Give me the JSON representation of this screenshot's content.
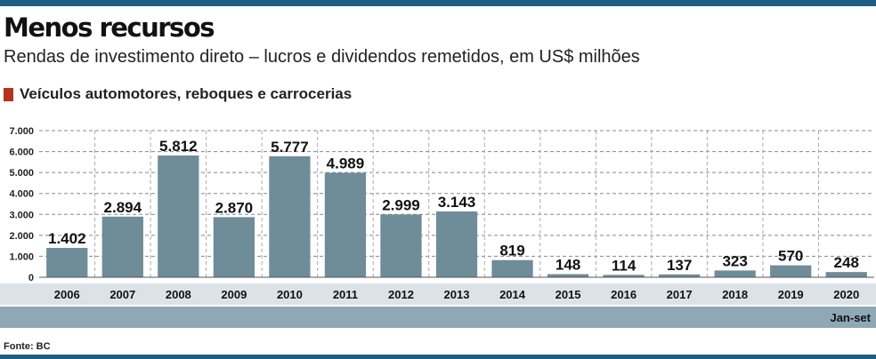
{
  "header": {
    "title": "Menos recursos",
    "subtitle": "Rendas de investimento direto – lucros e dividendos remetidos, em US$ milhões"
  },
  "legend": {
    "label": "Veículos automotores, reboques e carrocerias",
    "color": "#b5321e"
  },
  "footer": {
    "source": "Fonte: BC"
  },
  "colors": {
    "bar": "#6f8c99",
    "axis_band": "#dbe3e8",
    "note_band": "#8fa8b6",
    "rule": "#1d5f82"
  },
  "chart_data": {
    "type": "bar",
    "title": "Menos recursos",
    "subtitle": "Rendas de investimento direto – lucros e dividendos remetidos, em US$ milhões",
    "categories": [
      "2006",
      "2007",
      "2008",
      "2009",
      "2010",
      "2011",
      "2012",
      "2013",
      "2014",
      "2015",
      "2016",
      "2017",
      "2018",
      "2019",
      "2020"
    ],
    "series": [
      {
        "name": "Veículos automotores, reboques e carrocerias",
        "values": [
          1402,
          2894,
          5812,
          2870,
          5777,
          4989,
          2999,
          3143,
          819,
          148,
          114,
          137,
          323,
          570,
          248
        ],
        "labels": [
          "1.402",
          "2.894",
          "5.812",
          "2.870",
          "5.777",
          "4.989",
          "2.999",
          "3.143",
          "819",
          "148",
          "114",
          "137",
          "323",
          "570",
          "248"
        ]
      }
    ],
    "ylim": [
      0,
      7000
    ],
    "yticks": [
      0,
      1000,
      2000,
      3000,
      4000,
      5000,
      6000,
      7000
    ],
    "ytick_labels": [
      "0",
      "1.000",
      "2.000",
      "3.000",
      "4.000",
      "5.000",
      "6.000",
      "7.000"
    ],
    "xlabel": "",
    "ylabel": "",
    "grid": true,
    "legend_position": "top-left",
    "period_note": "Jan-set"
  }
}
